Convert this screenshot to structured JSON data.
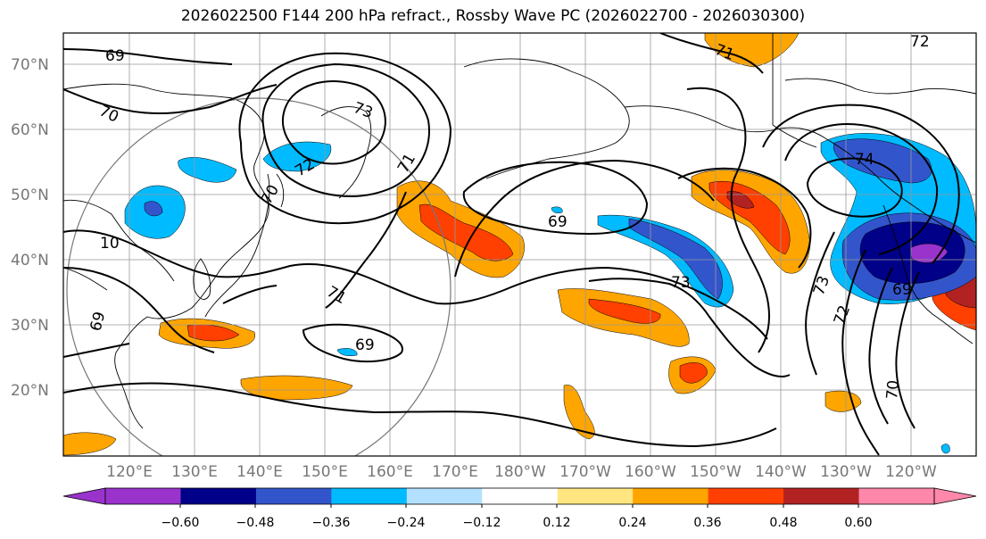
{
  "title": "2026022500 F144 200 hPa refract., Rossby Wave PC (2026022700 - 2026030300)",
  "lat_labels": [
    "70°N",
    "60°N",
    "50°N",
    "40°N",
    "30°N",
    "20°N"
  ],
  "lon_labels": [
    "120°E",
    "130°E",
    "140°E",
    "150°E",
    "160°E",
    "170°E",
    "180°W",
    "170°W",
    "160°W",
    "150°W",
    "140°W",
    "130°W",
    "120°W"
  ],
  "colorbar": {
    "tick_labels": [
      "−0.60",
      "−0.48",
      "−0.36",
      "−0.24",
      "−0.12",
      "0.12",
      "0.24",
      "0.36",
      "0.48",
      "0.60"
    ],
    "colors": [
      "#9933cc",
      "#000088",
      "#3355cc",
      "#00bbff",
      "#b3e0ff",
      "#ffffff",
      "#ffe680",
      "#ffa500",
      "#ff4000",
      "#b22222",
      "#ff88aa"
    ]
  },
  "contour_labels": [
    "69",
    "70",
    "73",
    "72",
    "71",
    "70",
    "10",
    "71",
    "69",
    "69",
    "69",
    "73",
    "71",
    "74",
    "73",
    "72",
    "70",
    "69",
    "72"
  ]
}
